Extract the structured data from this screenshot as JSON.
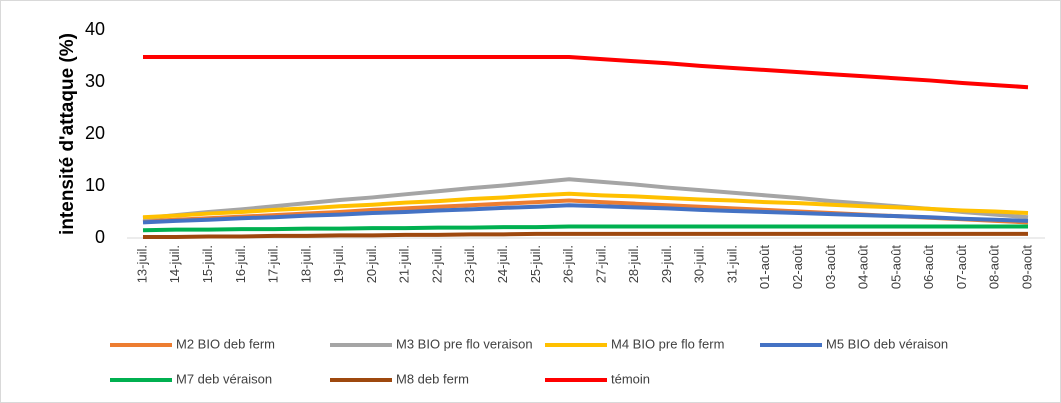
{
  "chart_data": {
    "type": "line",
    "y_label": "intensité d'attaque (%)",
    "categories": [
      "13-juil.",
      "14-juil.",
      "15-juil.",
      "16-juil.",
      "17-juil.",
      "18-juil.",
      "19-juil.",
      "20-juil.",
      "21-juil.",
      "22-juil.",
      "23-juil.",
      "24-juil.",
      "25-juil.",
      "26-juil.",
      "27-juil.",
      "28-juil.",
      "29-juil.",
      "30-juil.",
      "31-juil.",
      "01-août",
      "02-août",
      "03-août",
      "04-août",
      "05-août",
      "06-août",
      "07-août",
      "08-août",
      "09-août"
    ],
    "series": [
      {
        "name": "M2 BIO deb ferm",
        "color": "#ed7d31",
        "values": [
          3.2,
          3.5,
          3.8,
          4.1,
          4.4,
          4.7,
          5.0,
          5.4,
          5.7,
          6.0,
          6.3,
          6.6,
          6.9,
          7.2,
          6.9,
          6.6,
          6.3,
          6.0,
          5.7,
          5.4,
          5.1,
          4.8,
          4.5,
          4.2,
          3.9,
          3.6,
          3.3,
          3.0
        ]
      },
      {
        "name": "M3 BIO pre flo veraison",
        "color": "#a5a5a5",
        "values": [
          3.8,
          4.4,
          5.0,
          5.5,
          6.1,
          6.7,
          7.3,
          7.8,
          8.4,
          9.0,
          9.6,
          10.1,
          10.7,
          11.3,
          10.8,
          10.3,
          9.7,
          9.2,
          8.7,
          8.2,
          7.7,
          7.1,
          6.6,
          6.1,
          5.6,
          5.0,
          4.5,
          4.0
        ]
      },
      {
        "name": "M4 BIO pre flo ferm",
        "color": "#ffc000",
        "values": [
          4.0,
          4.3,
          4.7,
          5.0,
          5.4,
          5.7,
          6.1,
          6.4,
          6.8,
          7.1,
          7.5,
          7.8,
          8.2,
          8.5,
          8.2,
          8.0,
          7.7,
          7.4,
          7.2,
          6.9,
          6.7,
          6.4,
          6.1,
          5.9,
          5.6,
          5.3,
          5.1,
          4.8
        ]
      },
      {
        "name": "M5 BIO deb  véraison",
        "color": "#4472c4",
        "values": [
          3.0,
          3.3,
          3.5,
          3.8,
          4.0,
          4.3,
          4.5,
          4.8,
          5.0,
          5.3,
          5.5,
          5.8,
          6.0,
          6.3,
          6.1,
          5.9,
          5.7,
          5.4,
          5.2,
          5.0,
          4.8,
          4.6,
          4.4,
          4.2,
          4.0,
          3.7,
          3.5,
          3.3
        ]
      },
      {
        "name": "M7 deb véraison",
        "color": "#00b050",
        "values": [
          1.5,
          1.6,
          1.6,
          1.7,
          1.7,
          1.8,
          1.8,
          1.9,
          1.9,
          2.0,
          2.0,
          2.1,
          2.1,
          2.2,
          2.2,
          2.2,
          2.2,
          2.2,
          2.2,
          2.2,
          2.2,
          2.2,
          2.2,
          2.2,
          2.2,
          2.2,
          2.2,
          2.2
        ]
      },
      {
        "name": "M8 deb ferm",
        "color": "#9e480e",
        "values": [
          0.2,
          0.2,
          0.3,
          0.3,
          0.4,
          0.4,
          0.5,
          0.5,
          0.6,
          0.6,
          0.7,
          0.7,
          0.8,
          0.8,
          0.8,
          0.8,
          0.8,
          0.8,
          0.8,
          0.8,
          0.8,
          0.8,
          0.8,
          0.8,
          0.8,
          0.8,
          0.8,
          0.8
        ]
      },
      {
        "name": "témoin",
        "color": "#ff0000",
        "values": [
          34.8,
          34.8,
          34.8,
          34.8,
          34.8,
          34.8,
          34.8,
          34.8,
          34.8,
          34.8,
          34.8,
          34.8,
          34.8,
          34.8,
          34.4,
          34.0,
          33.6,
          33.1,
          32.7,
          32.3,
          31.9,
          31.5,
          31.1,
          30.7,
          30.3,
          29.8,
          29.4,
          29.0
        ]
      }
    ],
    "ylim": [
      0,
      40
    ],
    "yticks": [
      0,
      10,
      20,
      30,
      40
    ],
    "grid": false
  }
}
